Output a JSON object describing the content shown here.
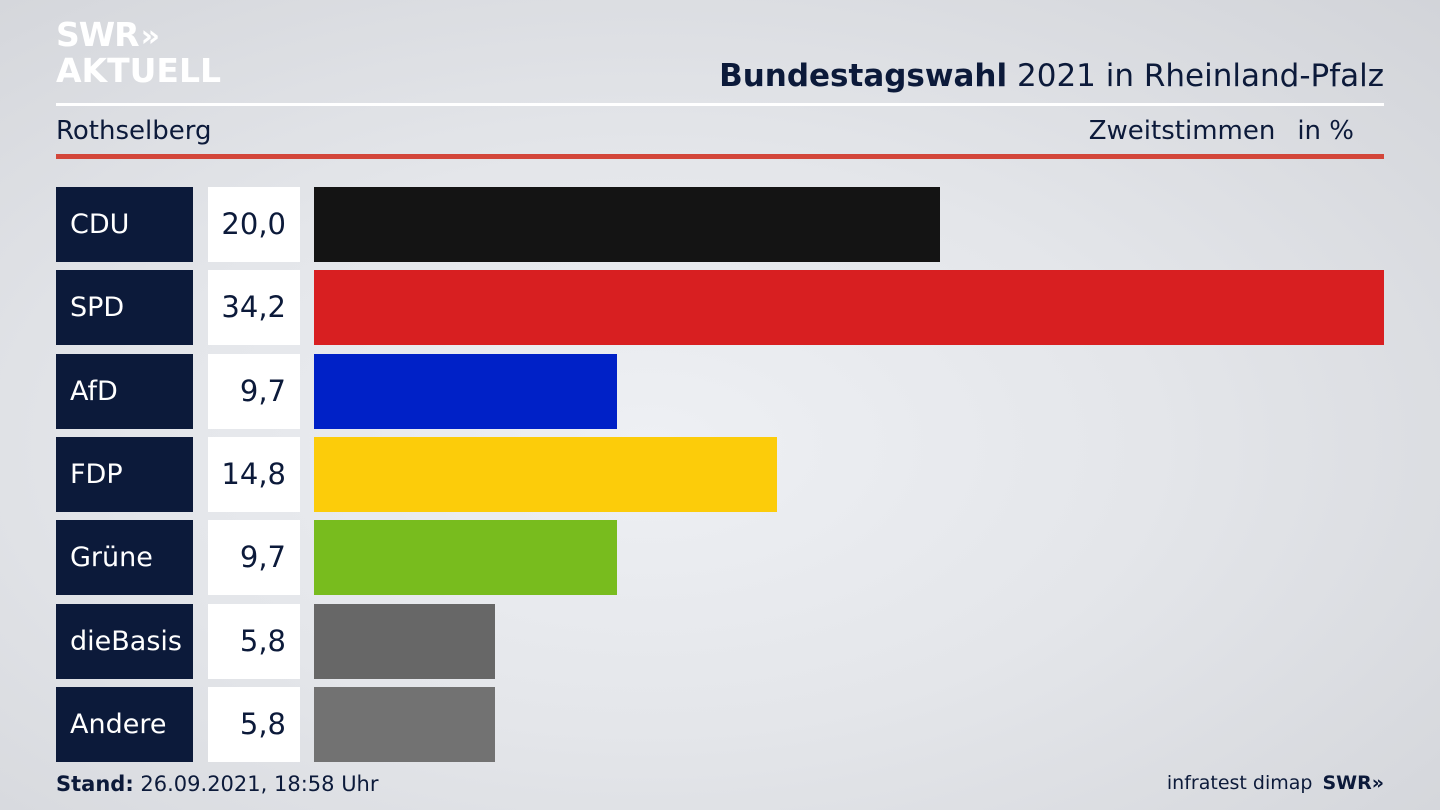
{
  "header": {
    "logo_line1": "SWR",
    "logo_chevrons": "»",
    "logo_line2": "AKTUELL",
    "title_bold": "Bundestagswahl",
    "title_rest": "2021 in Rheinland-Pfalz",
    "region": "Rothselberg",
    "metric": "Zweitstimmen",
    "unit": "in %"
  },
  "chart_data": {
    "type": "bar",
    "orientation": "horizontal",
    "categories": [
      "CDU",
      "SPD",
      "AfD",
      "FDP",
      "Grüne",
      "dieBasis",
      "Andere"
    ],
    "values": [
      20.0,
      34.2,
      9.7,
      14.8,
      9.7,
      5.8,
      5.8
    ],
    "value_labels": [
      "20,0",
      "34,2",
      "9,7",
      "14,8",
      "9,7",
      "5,8",
      "5,8"
    ],
    "colors": [
      "#141414",
      "#d81f21",
      "#0021c7",
      "#fccc0a",
      "#78bc1e",
      "#676767",
      "#727272"
    ],
    "xlim": [
      0,
      34.2
    ]
  },
  "footer": {
    "stand_label": "Stand:",
    "stand_value": "26.09.2021, 18:58 Uhr",
    "source": "infratest dimap",
    "brand": "SWR»"
  }
}
